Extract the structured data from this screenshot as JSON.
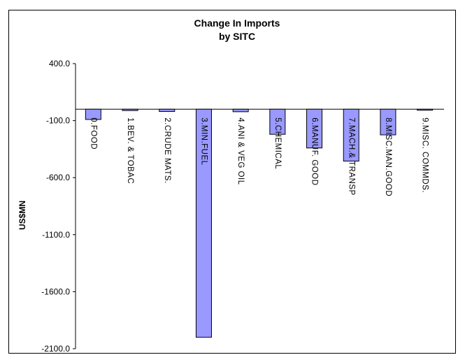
{
  "chart_data": {
    "type": "bar",
    "title": [
      "Change In Imports",
      "by SITC"
    ],
    "xlabel": "",
    "ylabel": "US$MN",
    "ylim": [
      -2100,
      400
    ],
    "yticks": [
      400,
      -100,
      -600,
      -1100,
      -1600,
      -2100
    ],
    "ytick_labels": [
      "400.0",
      "-100.0",
      "-600.0",
      "-1100.0",
      "-1600.0",
      "-2100.0"
    ],
    "categories": [
      "0.FOOD",
      "1.BEV. & TOBAC",
      "2.CRUDE MATS.",
      "3.MIN.FUEL",
      "4.ANI & VEG OIL",
      "5.CHEMICAL",
      "6.MANUF. GOOD",
      "7.MACH.& TRANSP",
      "8.MISC.MAN.GOOD",
      "9.MISC. COMMDS."
    ],
    "values": [
      -90,
      -12,
      -20,
      -2000,
      -22,
      -220,
      -340,
      -455,
      -225,
      -5
    ],
    "bar_color": "#9999ff",
    "grid": false,
    "legend": "none"
  }
}
